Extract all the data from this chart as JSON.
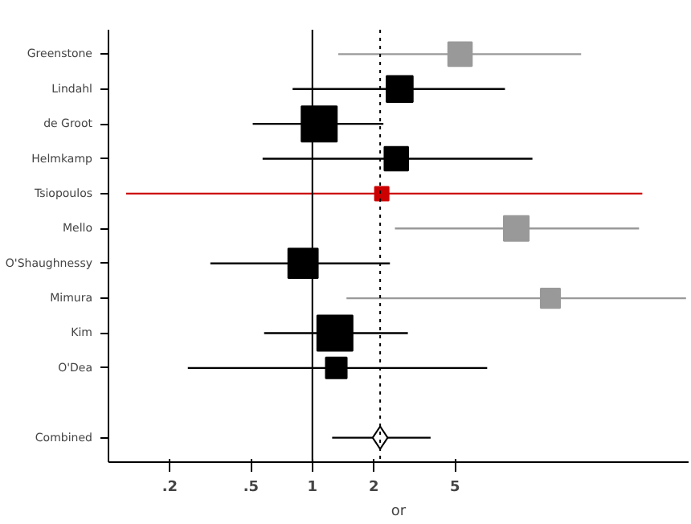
{
  "chart_data": {
    "type": "bubble",
    "orientation": "horizontal",
    "xlabel": "or",
    "marker": "square",
    "categories": [
      "Greenstone",
      "Lindahl",
      "de Groot",
      "Helmkamp",
      "Tsiopoulos",
      "Mello",
      "O'Shaughnessy",
      "Mimura",
      "Kim",
      "O'Dea",
      null,
      "Combined"
    ],
    "series": [
      {
        "color": "#000000",
        "values": [
          null,
          2.68,
          1.08,
          2.58,
          null,
          null,
          0.9,
          null,
          1.29,
          1.31,
          null,
          null
        ],
        "sizes": [
          null,
          0.55,
          1.0,
          0.45,
          null,
          null,
          0.7,
          null,
          1.0,
          0.35,
          null,
          null
        ],
        "errors": [
          null,
          [
            0.8,
            8.8
          ],
          [
            0.51,
            2.23
          ],
          [
            0.57,
            12.0
          ],
          null,
          null,
          [
            0.316,
            2.4
          ],
          null,
          [
            0.58,
            2.94
          ],
          [
            0.245,
            7.2
          ],
          null,
          null
        ]
      },
      {
        "color": "#999999",
        "values": [
          5.3,
          null,
          null,
          null,
          null,
          10.0,
          null,
          14.7,
          null,
          null,
          null,
          null
        ],
        "sizes": [
          0.45,
          null,
          null,
          null,
          null,
          0.5,
          null,
          0.3,
          null,
          null,
          null,
          null
        ],
        "errors": [
          [
            1.34,
            20.8
          ],
          null,
          null,
          null,
          null,
          [
            2.54,
            40
          ],
          null,
          [
            1.47,
            68
          ],
          null,
          null,
          null,
          null
        ]
      },
      {
        "color": "#cc0000",
        "values": [
          null,
          null,
          null,
          null,
          2.19,
          null,
          null,
          null,
          null,
          null,
          null,
          null
        ],
        "sizes": [
          null,
          null,
          null,
          null,
          0.15,
          null,
          null,
          null,
          null,
          null,
          null,
          null
        ],
        "errors": [
          null,
          null,
          null,
          null,
          [
            0.122,
            41.5
          ],
          null,
          null,
          null,
          null,
          null,
          null,
          null
        ]
      },
      {
        "type": "scatter",
        "marker": "diamond",
        "color": "#000000",
        "values": [
          null,
          null,
          null,
          null,
          null,
          null,
          null,
          null,
          null,
          null,
          null,
          2.15
        ],
        "errors": [
          null,
          null,
          null,
          null,
          null,
          null,
          null,
          null,
          null,
          null,
          null,
          [
            1.25,
            3.8
          ]
        ]
      }
    ],
    "xlim": [
      0.1,
      70
    ],
    "xticks": [
      {
        "value": 0.2,
        "label": ".2"
      },
      {
        "value": 0.5,
        "label": ".5"
      },
      1,
      2,
      5
    ],
    "log": "x",
    "ref_lines": [
      {
        "axis": "x",
        "value": 1,
        "line_style": "solid",
        "color": "#000000"
      },
      {
        "axis": "x",
        "value": 2.15,
        "line_style": "dotted",
        "color": "#000000"
      }
    ]
  }
}
